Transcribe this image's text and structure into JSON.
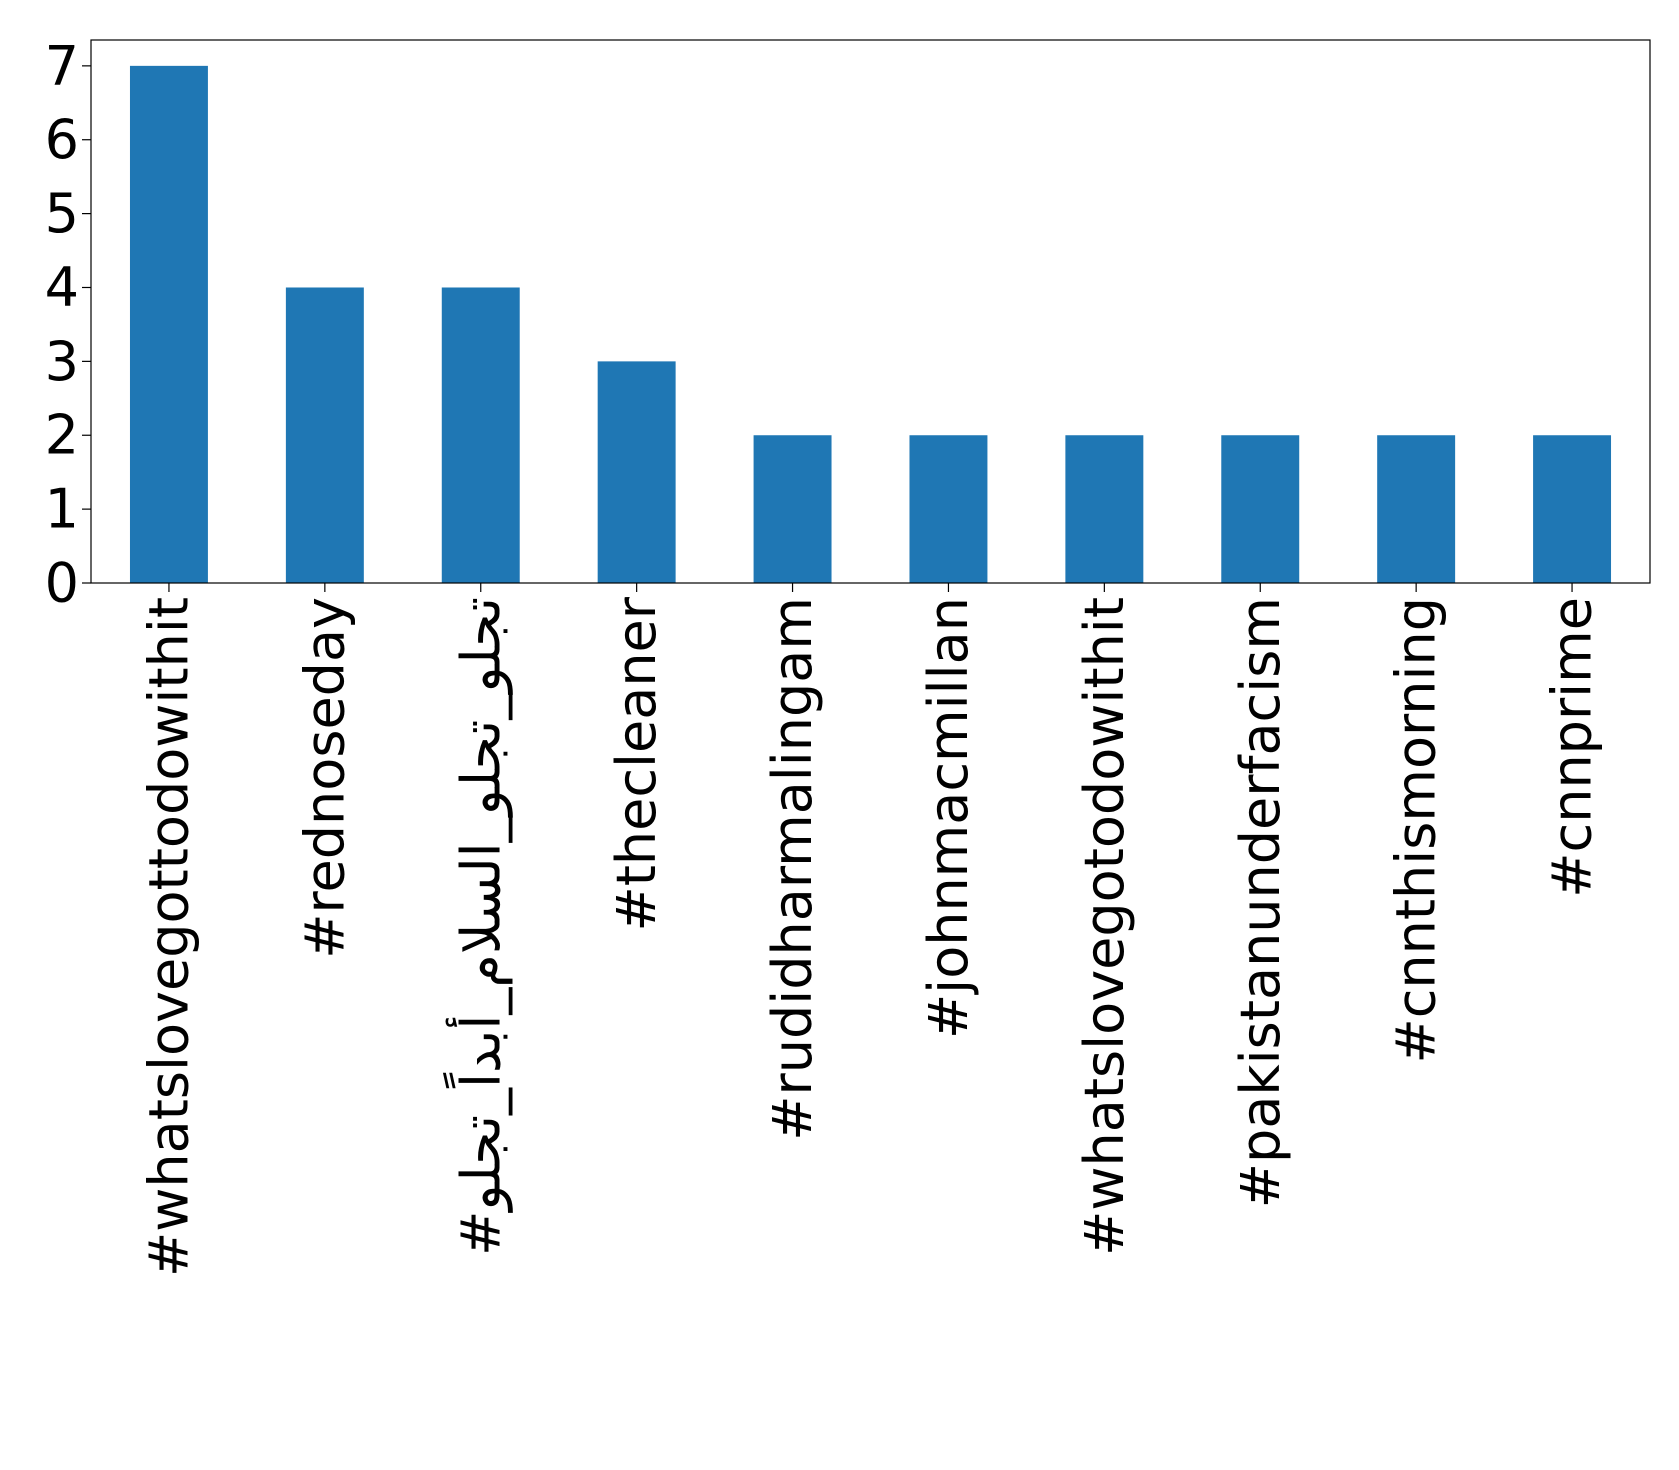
{
  "chart_data": {
    "type": "bar",
    "title": "",
    "xlabel": "",
    "ylabel": "",
    "categories": [
      "#whatslovegottodowithit",
      "#rednoseday",
      "#تجلو_تجلو_السلام_أبداً_تجلو",
      "#thecleaner",
      "#rudidharmalingam",
      "#johnmacmillan",
      "#whatslovegotodowithit",
      "#pakistanunderfacism",
      "#cnnthismorning",
      "#cnnprime"
    ],
    "values": [
      7,
      4,
      4,
      3,
      2,
      2,
      2,
      2,
      2,
      2
    ],
    "ylim": [
      0,
      7.35
    ],
    "yticks": [
      0,
      1,
      2,
      3,
      4,
      5,
      6,
      7
    ],
    "grid": false,
    "legend": "none",
    "bar_color": "#1f77b4",
    "axis_color": "#000000"
  }
}
